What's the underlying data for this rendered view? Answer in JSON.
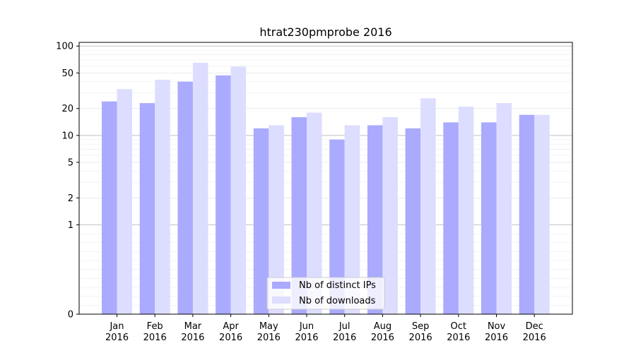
{
  "chart_data": {
    "type": "bar",
    "title": "htrat230pmprobe 2016",
    "xlabel": "",
    "ylabel": "",
    "y_scale": "symlog",
    "ylim": [
      0,
      110
    ],
    "y_ticks": [
      0,
      1,
      2,
      5,
      10,
      20,
      50,
      100
    ],
    "y_tick_labels": [
      "0",
      "1",
      "2",
      "5",
      "10",
      "20",
      "50",
      "100"
    ],
    "grid": true,
    "legend_position": "bottom-center",
    "categories": [
      "Jan 2016",
      "Feb 2016",
      "Mar 2016",
      "Apr 2016",
      "May 2016",
      "Jun 2016",
      "Jul 2016",
      "Aug 2016",
      "Sep 2016",
      "Oct 2016",
      "Nov 2016",
      "Dec 2016"
    ],
    "category_labels": [
      [
        "Jan",
        "2016"
      ],
      [
        "Feb",
        "2016"
      ],
      [
        "Mar",
        "2016"
      ],
      [
        "Apr",
        "2016"
      ],
      [
        "May",
        "2016"
      ],
      [
        "Jun",
        "2016"
      ],
      [
        "Jul",
        "2016"
      ],
      [
        "Aug",
        "2016"
      ],
      [
        "Sep",
        "2016"
      ],
      [
        "Oct",
        "2016"
      ],
      [
        "Nov",
        "2016"
      ],
      [
        "Dec",
        "2016"
      ]
    ],
    "series": [
      {
        "name": "Nb of distinct IPs",
        "color": "#aaaaff",
        "values": [
          24,
          23,
          40,
          47,
          12,
          16,
          9,
          13,
          12,
          14,
          14,
          17
        ]
      },
      {
        "name": "Nb of downloads",
        "color": "#ddddff",
        "values": [
          33,
          42,
          65,
          59,
          13,
          18,
          13,
          16,
          26,
          21,
          23,
          17
        ]
      }
    ]
  }
}
